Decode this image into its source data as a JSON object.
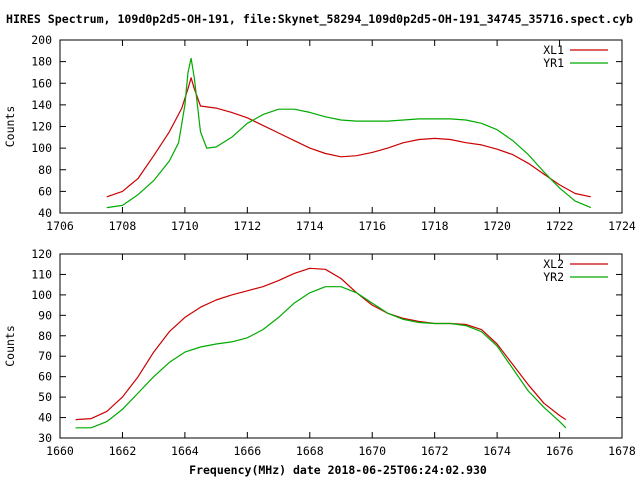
{
  "title": "HIRES Spectrum, 109d0p2d5-OH-191, file:Skynet_58294_109d0p2d5-OH-191_34745_35716.spect.cyb",
  "xlabel": "Frequency(MHz) date 2018-06-25T06:24:02.930",
  "colors": {
    "red": "#cc0000",
    "green": "#00aa00",
    "axis": "#000000"
  },
  "chart_data": [
    {
      "type": "line",
      "title": "HIRES Spectrum, 109d0p2d5-OH-191, file:Skynet_58294_109d0p2d5-OH-191_34745_35716.spect.cyb",
      "xlabel": "",
      "ylabel": "Counts",
      "xlim": [
        1706,
        1724
      ],
      "ylim": [
        40,
        200
      ],
      "xticks": [
        1706,
        1708,
        1710,
        1712,
        1714,
        1716,
        1718,
        1720,
        1722,
        1724
      ],
      "yticks": [
        40,
        60,
        80,
        100,
        120,
        140,
        160,
        180,
        200
      ],
      "grid": false,
      "legend": "top-right",
      "series": [
        {
          "name": "XL1",
          "color": "#cc0000",
          "points": [
            [
              1707.5,
              55
            ],
            [
              1708,
              60
            ],
            [
              1708.5,
              72
            ],
            [
              1709,
              93
            ],
            [
              1709.5,
              115
            ],
            [
              1709.9,
              137
            ],
            [
              1710.1,
              155
            ],
            [
              1710.2,
              165
            ],
            [
              1710.3,
              155
            ],
            [
              1710.5,
              139
            ],
            [
              1711,
              137
            ],
            [
              1711.5,
              133
            ],
            [
              1712,
              128
            ],
            [
              1712.5,
              121
            ],
            [
              1713,
              114
            ],
            [
              1713.5,
              107
            ],
            [
              1714,
              100
            ],
            [
              1714.5,
              95
            ],
            [
              1715,
              92
            ],
            [
              1715.5,
              93
            ],
            [
              1716,
              96
            ],
            [
              1716.5,
              100
            ],
            [
              1717,
              105
            ],
            [
              1717.5,
              108
            ],
            [
              1718,
              109
            ],
            [
              1718.5,
              108
            ],
            [
              1719,
              105
            ],
            [
              1719.5,
              103
            ],
            [
              1720,
              99
            ],
            [
              1720.5,
              94
            ],
            [
              1721,
              86
            ],
            [
              1721.5,
              76
            ],
            [
              1722,
              66
            ],
            [
              1722.5,
              58
            ],
            [
              1723,
              55
            ]
          ]
        },
        {
          "name": "YR1",
          "color": "#00aa00",
          "points": [
            [
              1707.5,
              45
            ],
            [
              1708,
              47
            ],
            [
              1708.5,
              57
            ],
            [
              1709,
              70
            ],
            [
              1709.5,
              88
            ],
            [
              1709.8,
              105
            ],
            [
              1710,
              140
            ],
            [
              1710.1,
              170
            ],
            [
              1710.2,
              183
            ],
            [
              1710.3,
              165
            ],
            [
              1710.5,
              115
            ],
            [
              1710.7,
              100
            ],
            [
              1711,
              101
            ],
            [
              1711.5,
              110
            ],
            [
              1712,
              123
            ],
            [
              1712.5,
              131
            ],
            [
              1713,
              136
            ],
            [
              1713.5,
              136
            ],
            [
              1714,
              133
            ],
            [
              1714.5,
              129
            ],
            [
              1715,
              126
            ],
            [
              1715.5,
              125
            ],
            [
              1716,
              125
            ],
            [
              1716.5,
              125
            ],
            [
              1717,
              126
            ],
            [
              1717.5,
              127
            ],
            [
              1718,
              127
            ],
            [
              1718.5,
              127
            ],
            [
              1719,
              126
            ],
            [
              1719.5,
              123
            ],
            [
              1720,
              117
            ],
            [
              1720.5,
              107
            ],
            [
              1721,
              94
            ],
            [
              1721.5,
              78
            ],
            [
              1722,
              63
            ],
            [
              1722.5,
              51
            ],
            [
              1723,
              45
            ]
          ]
        }
      ]
    },
    {
      "type": "line",
      "title": "",
      "xlabel": "Frequency(MHz) date 2018-06-25T06:24:02.930",
      "ylabel": "Counts",
      "xlim": [
        1660,
        1678
      ],
      "ylim": [
        30,
        120
      ],
      "xticks": [
        1660,
        1662,
        1664,
        1666,
        1668,
        1670,
        1672,
        1674,
        1676,
        1678
      ],
      "yticks": [
        30,
        40,
        50,
        60,
        70,
        80,
        90,
        100,
        110,
        120
      ],
      "grid": false,
      "legend": "top-right",
      "series": [
        {
          "name": "XL2",
          "color": "#cc0000",
          "points": [
            [
              1660.5,
              39
            ],
            [
              1661,
              39.5
            ],
            [
              1661.5,
              43
            ],
            [
              1662,
              50
            ],
            [
              1662.5,
              60
            ],
            [
              1663,
              72
            ],
            [
              1663.5,
              82
            ],
            [
              1664,
              89
            ],
            [
              1664.5,
              94
            ],
            [
              1665,
              97.5
            ],
            [
              1665.5,
              100
            ],
            [
              1666,
              102
            ],
            [
              1666.5,
              104
            ],
            [
              1667,
              107
            ],
            [
              1667.5,
              110.5
            ],
            [
              1668,
              113
            ],
            [
              1668.5,
              112.5
            ],
            [
              1669,
              108
            ],
            [
              1669.5,
              101
            ],
            [
              1670,
              95
            ],
            [
              1670.5,
              91
            ],
            [
              1671,
              88.5
            ],
            [
              1671.5,
              87
            ],
            [
              1672,
              86
            ],
            [
              1672.5,
              86
            ],
            [
              1673,
              85.5
            ],
            [
              1673.5,
              83
            ],
            [
              1674,
              76
            ],
            [
              1674.5,
              66
            ],
            [
              1675,
              56
            ],
            [
              1675.5,
              47
            ],
            [
              1676,
              41
            ],
            [
              1676.2,
              39
            ]
          ]
        },
        {
          "name": "YR2",
          "color": "#00aa00",
          "points": [
            [
              1660.5,
              35
            ],
            [
              1661,
              35
            ],
            [
              1661.5,
              38
            ],
            [
              1662,
              44
            ],
            [
              1662.5,
              52
            ],
            [
              1663,
              60
            ],
            [
              1663.5,
              67
            ],
            [
              1664,
              72
            ],
            [
              1664.5,
              74.5
            ],
            [
              1665,
              76
            ],
            [
              1665.5,
              77
            ],
            [
              1666,
              79
            ],
            [
              1666.5,
              83
            ],
            [
              1667,
              89
            ],
            [
              1667.5,
              96
            ],
            [
              1668,
              101
            ],
            [
              1668.5,
              104
            ],
            [
              1669,
              104
            ],
            [
              1669.5,
              101
            ],
            [
              1670,
              96
            ],
            [
              1670.5,
              91
            ],
            [
              1671,
              88
            ],
            [
              1671.5,
              86.5
            ],
            [
              1672,
              86
            ],
            [
              1672.5,
              86
            ],
            [
              1673,
              85
            ],
            [
              1673.5,
              82
            ],
            [
              1674,
              75
            ],
            [
              1674.5,
              64
            ],
            [
              1675,
              53
            ],
            [
              1675.5,
              45
            ],
            [
              1676,
              38
            ],
            [
              1676.2,
              35
            ]
          ]
        }
      ]
    }
  ]
}
